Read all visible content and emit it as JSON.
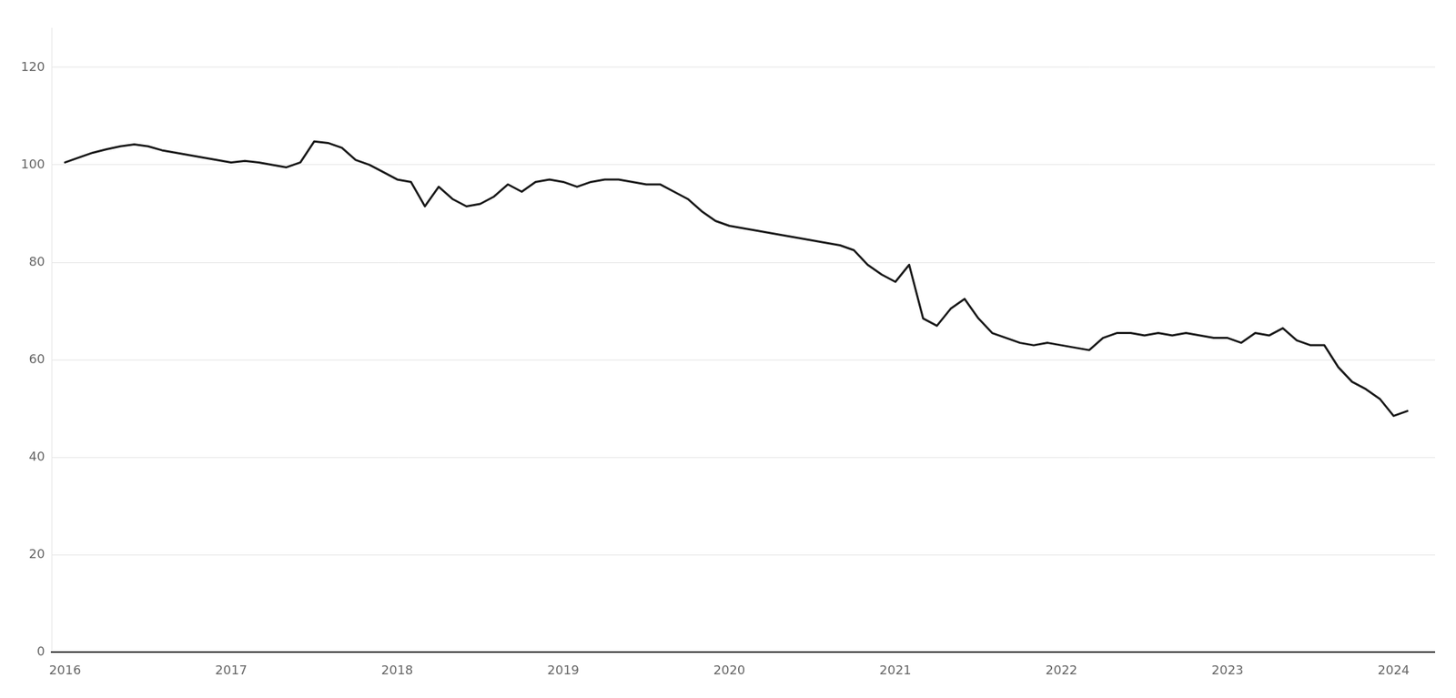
{
  "chart_data": {
    "type": "line",
    "x": [
      2016.0,
      2016.083,
      2016.167,
      2016.25,
      2016.333,
      2016.417,
      2016.5,
      2016.583,
      2016.667,
      2016.75,
      2016.833,
      2016.917,
      2017.0,
      2017.083,
      2017.167,
      2017.25,
      2017.333,
      2017.417,
      2017.5,
      2017.583,
      2017.667,
      2017.75,
      2017.833,
      2017.917,
      2018.0,
      2018.083,
      2018.167,
      2018.25,
      2018.333,
      2018.417,
      2018.5,
      2018.583,
      2018.667,
      2018.75,
      2018.833,
      2018.917,
      2019.0,
      2019.083,
      2019.167,
      2019.25,
      2019.333,
      2019.417,
      2019.5,
      2019.583,
      2019.667,
      2019.75,
      2019.833,
      2019.917,
      2020.0,
      2020.083,
      2020.167,
      2020.25,
      2020.333,
      2020.417,
      2020.5,
      2020.583,
      2020.667,
      2020.75,
      2020.833,
      2020.917,
      2021.0,
      2021.083,
      2021.167,
      2021.25,
      2021.333,
      2021.417,
      2021.5,
      2021.583,
      2021.667,
      2021.75,
      2021.833,
      2021.917,
      2022.0,
      2022.083,
      2022.167,
      2022.25,
      2022.333,
      2022.417,
      2022.5,
      2022.583,
      2022.667,
      2022.75,
      2022.833,
      2022.917,
      2023.0,
      2023.083,
      2023.167,
      2023.25,
      2023.333,
      2023.417,
      2023.5,
      2023.583,
      2023.667,
      2023.75,
      2023.833,
      2023.917,
      2024.0,
      2024.083
    ],
    "series": [
      {
        "color": "#1a1a1a",
        "values": [
          100.5,
          101.5,
          102.5,
          103.2,
          103.8,
          104.2,
          103.8,
          103.0,
          102.5,
          102.0,
          101.5,
          101.0,
          100.5,
          100.8,
          100.5,
          100.0,
          99.5,
          100.5,
          104.8,
          104.5,
          103.5,
          101.0,
          100.0,
          98.5,
          97.0,
          96.5,
          91.5,
          95.5,
          93.0,
          91.5,
          92.0,
          93.5,
          96.0,
          94.5,
          96.5,
          97.0,
          96.5,
          95.5,
          96.5,
          97.0,
          97.0,
          96.5,
          96.0,
          96.0,
          94.5,
          93.0,
          90.5,
          88.5,
          87.5,
          87.0,
          86.5,
          86.0,
          85.5,
          85.0,
          84.5,
          84.0,
          83.5,
          82.5,
          79.5,
          77.5,
          76.0,
          79.5,
          68.5,
          67.0,
          70.5,
          72.5,
          68.5,
          65.5,
          64.5,
          63.5,
          63.0,
          63.5,
          63.0,
          62.5,
          62.0,
          64.5,
          65.5,
          65.5,
          65.0,
          65.5,
          65.0,
          65.5,
          65.0,
          64.5,
          64.5,
          63.5,
          65.5,
          65.0,
          66.5,
          64.0,
          63.0,
          63.0,
          58.5,
          55.5,
          54.0,
          52.0,
          48.5,
          49.5
        ]
      }
    ],
    "xlim": [
      2015.92,
      2024.25
    ],
    "xticks": [
      2016,
      2017,
      2018,
      2019,
      2020,
      2021,
      2022,
      2023,
      2024
    ],
    "ylim": [
      0,
      128
    ],
    "yticks": [
      0,
      20,
      40,
      60,
      80,
      100,
      120
    ],
    "grid": true
  }
}
